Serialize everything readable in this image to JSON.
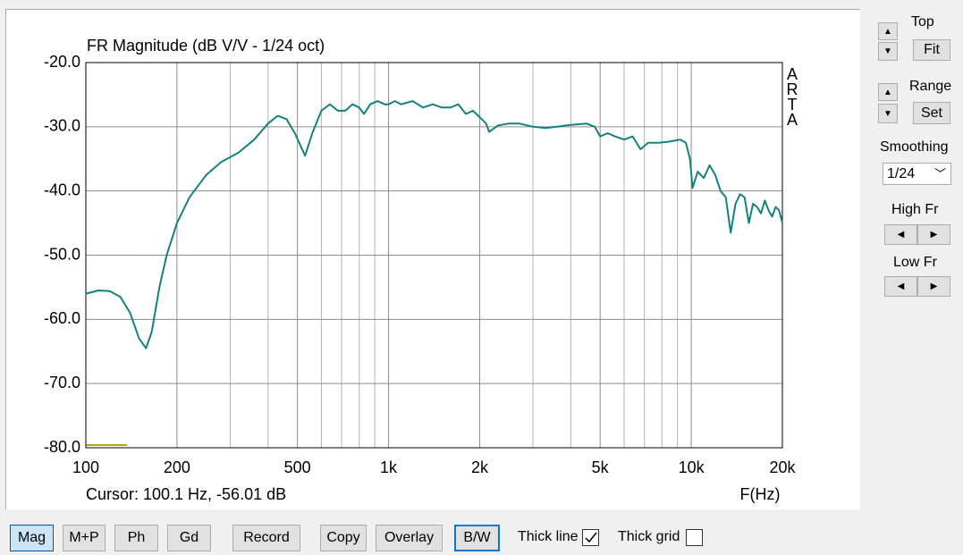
{
  "chart_data": {
    "type": "line",
    "title": "FR Magnitude (dB V/V - 1/24 oct)",
    "x_label": "F(Hz)",
    "side_label": "ARTA",
    "cursor": "Cursor: 100.1 Hz, -56.01 dB",
    "color": "#17807f",
    "log_x": true,
    "grid": true,
    "xlim": [
      100,
      20000
    ],
    "ylim": [
      -80,
      -20
    ],
    "xticks": [
      100,
      200,
      500,
      {
        "value": 1000,
        "label": "1k"
      },
      {
        "value": 2000,
        "label": "2k"
      },
      {
        "value": 5000,
        "label": "5k"
      },
      {
        "value": 10000,
        "label": "10k"
      },
      {
        "value": 20000,
        "label": "20k"
      }
    ],
    "xminor": [
      300,
      400,
      600,
      700,
      800,
      900,
      3000,
      4000,
      6000,
      7000,
      8000,
      9000
    ],
    "yticks": [
      {
        "value": -20,
        "label": "-20.0"
      },
      {
        "value": -30,
        "label": "-30.0"
      },
      {
        "value": -40,
        "label": "-40.0"
      },
      {
        "value": -50,
        "label": "-50.0"
      },
      {
        "value": -60,
        "label": "-60.0"
      },
      {
        "value": -70,
        "label": "-70.0"
      },
      {
        "value": -80,
        "label": "-80.0"
      }
    ],
    "x": [
      100,
      110,
      120,
      130,
      140,
      150,
      158,
      165,
      175,
      185,
      200,
      220,
      250,
      280,
      320,
      360,
      400,
      430,
      460,
      490,
      530,
      560,
      600,
      640,
      680,
      720,
      760,
      800,
      830,
      870,
      920,
      970,
      1000,
      1050,
      1100,
      1200,
      1300,
      1400,
      1500,
      1600,
      1700,
      1800,
      1900,
      2000,
      2100,
      2150,
      2300,
      2500,
      2700,
      3000,
      3300,
      3600,
      4000,
      4500,
      4800,
      5000,
      5300,
      5600,
      6000,
      6400,
      6800,
      7200,
      7800,
      8500,
      9200,
      9600,
      9900,
      10100,
      10500,
      11000,
      11500,
      12000,
      12500,
      13000,
      13500,
      14000,
      14500,
      15000,
      15500,
      16000,
      16500,
      17000,
      17500,
      18000,
      18500,
      19000,
      19500,
      20000
    ],
    "values": [
      -56,
      -55.5,
      -55.6,
      -56.5,
      -59,
      -63,
      -64.5,
      -62,
      -55,
      -50,
      -45,
      -41,
      -37.5,
      -35.5,
      -34,
      -32,
      -29.5,
      -28.3,
      -28.8,
      -31,
      -34.5,
      -31,
      -27.5,
      -26.5,
      -27.5,
      -27.5,
      -26.5,
      -27,
      -28,
      -26.5,
      -26,
      -26.5,
      -26.5,
      -26,
      -26.5,
      -26,
      -27,
      -26.5,
      -27,
      -27,
      -26.5,
      -28,
      -27.5,
      -28.5,
      -29.5,
      -30.8,
      -29.8,
      -29.5,
      -29.5,
      -30,
      -30.2,
      -30,
      -29.7,
      -29.5,
      -30,
      -31.5,
      -31,
      -31.5,
      -32,
      -31.5,
      -33.5,
      -32.5,
      -32.5,
      -32.3,
      -32,
      -32.5,
      -35,
      -39.5,
      -37,
      -38,
      -36,
      -37.5,
      -40,
      -41,
      -46.5,
      -42,
      -40.5,
      -41,
      -45,
      -42,
      -42.5,
      -43.5,
      -41.5,
      -43,
      -44,
      -42.5,
      -43,
      -45
    ]
  },
  "side_panel": {
    "top": "Top",
    "fit": "Fit",
    "range": "Range",
    "set": "Set",
    "smoothing": "Smoothing",
    "smoothing_value": "1/24",
    "high_fr": "High Fr",
    "low_fr": "Low Fr"
  },
  "toolbar": {
    "buttons": [
      "Mag",
      "M+P",
      "Ph",
      "Gd",
      "Record",
      "Copy",
      "Overlay",
      "B/W"
    ],
    "thick_line": {
      "label": "Thick line",
      "checked": true
    },
    "thick_grid": {
      "label": "Thick grid",
      "checked": false
    }
  }
}
